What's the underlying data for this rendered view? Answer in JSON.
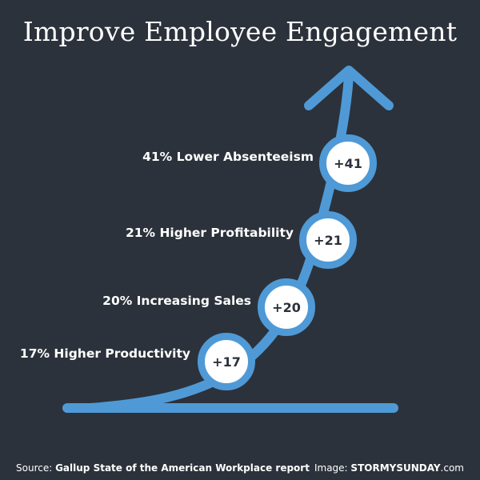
{
  "title": "Improve Employee Engagement",
  "colors": {
    "background": "#2c323b",
    "accent": "#4f9ad6",
    "badge_fill": "#ffffff"
  },
  "items": [
    {
      "label": "41% Lower Absenteeism",
      "value": "+41"
    },
    {
      "label": "21% Higher Profitability",
      "value": "+21"
    },
    {
      "label": "20% Increasing Sales",
      "value": "+20"
    },
    {
      "label": "17% Higher Productivity",
      "value": "+17"
    }
  ],
  "footer": {
    "source_prefix": "Source: ",
    "source": "Gallup State of the American Workplace report",
    "image_prefix": "Image: ",
    "image": "STORMYSUNDAY",
    "image_suffix": ".com"
  }
}
